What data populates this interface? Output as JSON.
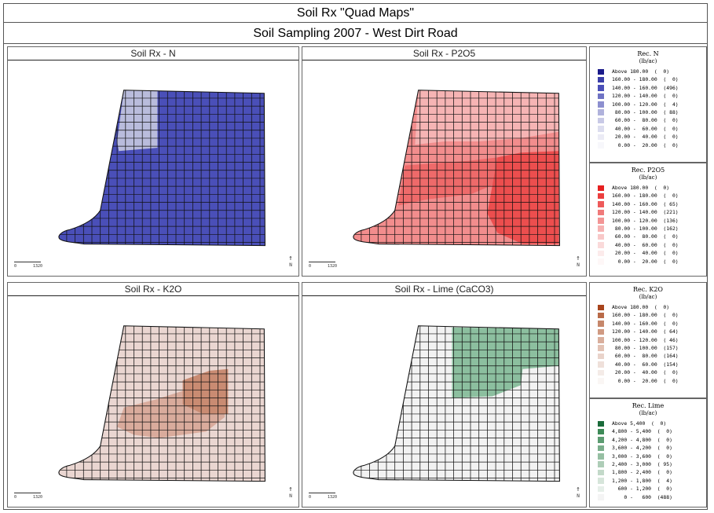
{
  "header": {
    "title": "Soil Rx \"Quad Maps\"",
    "subtitle": "Soil Sampling 2007 - West Dirt Road"
  },
  "maps": [
    {
      "title": "Soil Rx - N",
      "base_color": "#4a4fb8",
      "zone_colors": [
        "#b9bcdc"
      ],
      "zone_variant": "n"
    },
    {
      "title": "Soil Rx - P2O5",
      "base_color": "#f28d8d",
      "zone_colors": [
        "#f6b4b4",
        "#ee6a6a",
        "#ec4e4e"
      ],
      "zone_variant": "p"
    },
    {
      "title": "Soil Rx - K2O",
      "base_color": "#ead6d1",
      "zone_colors": [
        "#d9ab9c",
        "#c98b72"
      ],
      "zone_variant": "k"
    },
    {
      "title": "Soil Rx - Lime (CaCO3)",
      "base_color": "#f2f2f2",
      "zone_colors": [
        "#8cbf9f"
      ],
      "zone_variant": "l"
    }
  ],
  "scale_bar": {
    "zero": "0",
    "max": "1320"
  },
  "north_label": "N",
  "legends": [
    {
      "title": "Rec. N",
      "unit": "(lb/ac)",
      "rows": [
        {
          "label": "Above 180.00  (  0)",
          "color": "#1a1a8a"
        },
        {
          "label": "160.00 - 180.00  (  0)",
          "color": "#3a3ea8"
        },
        {
          "label": "140.00 - 160.00  (496)",
          "color": "#4a4fb8"
        },
        {
          "label": "120.00 - 140.00  (  0)",
          "color": "#6f73c4"
        },
        {
          "label": "100.00 - 120.00  (  4)",
          "color": "#8c8fcf"
        },
        {
          "label": " 80.00 - 100.00  ( 88)",
          "color": "#b0b2dc"
        },
        {
          "label": " 60.00 -  80.00  (  0)",
          "color": "#c8c9e6"
        },
        {
          "label": " 40.00 -  60.00  (  0)",
          "color": "#dcddef"
        },
        {
          "label": " 20.00 -  40.00  (  0)",
          "color": "#ebebf5"
        },
        {
          "label": "  0.00 -  20.00  (  0)",
          "color": "#f7f7fb"
        }
      ]
    },
    {
      "title": "Rec. P2O5",
      "unit": "(lb/ac)",
      "rows": [
        {
          "label": "Above 180.00  (  0)",
          "color": "#e62020"
        },
        {
          "label": "160.00 - 180.00  (  0)",
          "color": "#ec3e3e"
        },
        {
          "label": "140.00 - 160.00  ( 65)",
          "color": "#ee5a5a"
        },
        {
          "label": "120.00 - 140.00  (221)",
          "color": "#f07a7a"
        },
        {
          "label": "100.00 - 120.00  (136)",
          "color": "#f39595"
        },
        {
          "label": " 80.00 - 100.00  (162)",
          "color": "#f6b2b2"
        },
        {
          "label": " 60.00 -  80.00  (  0)",
          "color": "#f8c8c8"
        },
        {
          "label": " 40.00 -  60.00  (  0)",
          "color": "#fadada"
        },
        {
          "label": " 20.00 -  40.00  (  0)",
          "color": "#fcebeb"
        },
        {
          "label": "  0.00 -  20.00  (  0)",
          "color": "#fef7f7"
        }
      ]
    },
    {
      "title": "Rec. K2O",
      "unit": "(lb/ac)",
      "rows": [
        {
          "label": "Above 180.00  (  0)",
          "color": "#a8441c"
        },
        {
          "label": "160.00 - 180.00  (  0)",
          "color": "#b96a48"
        },
        {
          "label": "140.00 - 160.00  (  0)",
          "color": "#c6876b"
        },
        {
          "label": "120.00 - 140.00  ( 64)",
          "color": "#d09a82"
        },
        {
          "label": "100.00 - 120.00  ( 46)",
          "color": "#d9ae9c"
        },
        {
          "label": " 80.00 - 100.00  (157)",
          "color": "#e2c2b4"
        },
        {
          "label": " 60.00 -  80.00  (164)",
          "color": "#e9d3ca"
        },
        {
          "label": " 40.00 -  60.00  (154)",
          "color": "#efe0da"
        },
        {
          "label": " 20.00 -  40.00  (  0)",
          "color": "#f4ebe7"
        },
        {
          "label": "  0.00 -  20.00  (  0)",
          "color": "#faf6f4"
        }
      ]
    },
    {
      "title": "Rec. Lime",
      "unit": "(lb/ac)",
      "rows": [
        {
          "label": "Above 5,400  (  0)",
          "color": "#1a6b3a"
        },
        {
          "label": "4,800 - 5,400  (  0)",
          "color": "#3d8a57"
        },
        {
          "label": "4,200 - 4,800  (  0)",
          "color": "#5c9c71"
        },
        {
          "label": "3,600 - 4,200  (  0)",
          "color": "#7aae8b"
        },
        {
          "label": "3,000 - 3,600  (  0)",
          "color": "#96bfa3"
        },
        {
          "label": "2,400 - 3,000  ( 95)",
          "color": "#aecdb7"
        },
        {
          "label": "1,800 - 2,400  (  0)",
          "color": "#c3d9c9"
        },
        {
          "label": "1,200 - 1,800  (  4)",
          "color": "#d6e5da"
        },
        {
          "label": "  600 - 1,200  (  0)",
          "color": "#e6efe9"
        },
        {
          "label": "    0 -   600  (488)",
          "color": "#f4f4f4"
        }
      ]
    }
  ]
}
